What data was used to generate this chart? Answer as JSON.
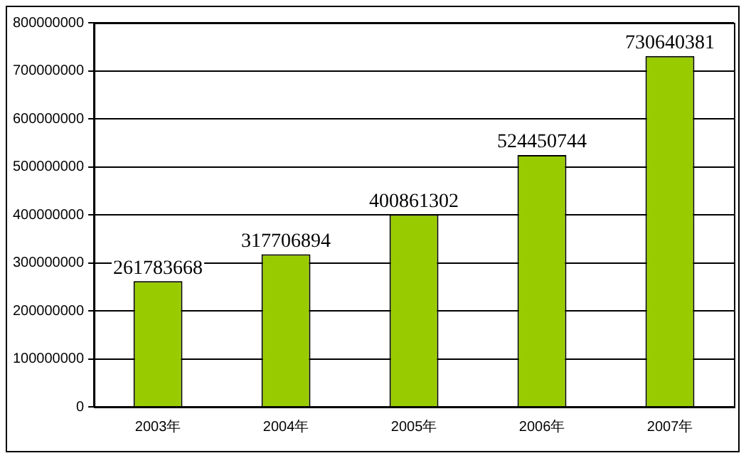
{
  "chart_data": {
    "type": "bar",
    "categories": [
      "2003年",
      "2004年",
      "2005年",
      "2006年",
      "2007年"
    ],
    "values": [
      261783668,
      317706894,
      400861302,
      524450744,
      730640381
    ],
    "color": "#99cc00",
    "ylim": [
      0,
      800000000
    ],
    "yticks": [
      0,
      100000000,
      200000000,
      300000000,
      400000000,
      500000000,
      600000000,
      700000000,
      800000000
    ],
    "grid": "y",
    "data_labels": true,
    "legend": false
  }
}
